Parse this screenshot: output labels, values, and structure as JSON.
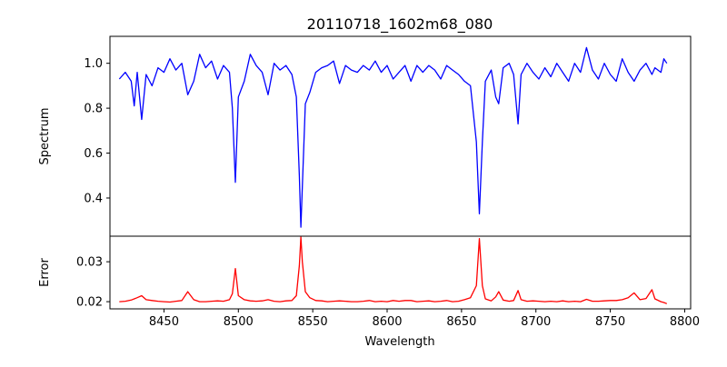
{
  "chart_data": [
    {
      "type": "line",
      "title": "20110718_1602m68_080",
      "xlabel": "",
      "ylabel": "Spectrum",
      "xlim": [
        8413.7,
        8804
      ],
      "ylim": [
        0.23,
        1.12
      ],
      "yticks": [
        "0.4",
        "0.6",
        "0.8",
        "1.0"
      ],
      "ytick_values": [
        0.4,
        0.6,
        0.8,
        1.0
      ],
      "color": "#0000ff",
      "series": [
        {
          "name": "Spectrum",
          "x": [
            8420,
            8424,
            8428,
            8430,
            8432,
            8435,
            8438,
            8442,
            8446,
            8450,
            8454,
            8458,
            8462,
            8466,
            8470,
            8474,
            8478,
            8482,
            8486,
            8490,
            8494,
            8496,
            8498,
            8500,
            8504,
            8508,
            8512,
            8516,
            8520,
            8524,
            8528,
            8532,
            8536,
            8539,
            8541,
            8542,
            8543,
            8545,
            8548,
            8552,
            8556,
            8560,
            8564,
            8568,
            8572,
            8576,
            8580,
            8584,
            8588,
            8592,
            8596,
            8600,
            8604,
            8608,
            8612,
            8616,
            8620,
            8624,
            8628,
            8632,
            8636,
            8640,
            8644,
            8648,
            8652,
            8656,
            8660,
            8662,
            8664,
            8666,
            8670,
            8673,
            8675,
            8678,
            8682,
            8685,
            8688,
            8690,
            8694,
            8698,
            8702,
            8706,
            8710,
            8714,
            8718,
            8722,
            8726,
            8730,
            8734,
            8738,
            8742,
            8746,
            8750,
            8754,
            8758,
            8762,
            8766,
            8770,
            8774,
            8778,
            8780,
            8784,
            8786,
            8788
          ],
          "y": [
            0.93,
            0.96,
            0.92,
            0.81,
            0.96,
            0.75,
            0.95,
            0.9,
            0.98,
            0.96,
            1.02,
            0.97,
            1.0,
            0.86,
            0.92,
            1.04,
            0.98,
            1.01,
            0.93,
            0.99,
            0.96,
            0.8,
            0.47,
            0.85,
            0.92,
            1.04,
            0.99,
            0.96,
            0.86,
            1.0,
            0.97,
            0.99,
            0.95,
            0.85,
            0.5,
            0.27,
            0.45,
            0.82,
            0.87,
            0.96,
            0.98,
            0.99,
            1.01,
            0.91,
            0.99,
            0.97,
            0.96,
            0.99,
            0.97,
            1.01,
            0.96,
            0.99,
            0.93,
            0.96,
            0.99,
            0.92,
            0.99,
            0.96,
            0.99,
            0.97,
            0.93,
            0.99,
            0.97,
            0.95,
            0.92,
            0.9,
            0.65,
            0.33,
            0.65,
            0.92,
            0.97,
            0.85,
            0.82,
            0.98,
            1.0,
            0.95,
            0.73,
            0.95,
            1.0,
            0.96,
            0.93,
            0.98,
            0.94,
            1.0,
            0.96,
            0.92,
            1.0,
            0.96,
            1.07,
            0.97,
            0.93,
            1.0,
            0.95,
            0.92,
            1.02,
            0.96,
            0.92,
            0.97,
            1.0,
            0.95,
            0.98,
            0.96,
            1.02,
            1.0
          ]
        }
      ]
    },
    {
      "type": "line",
      "title": "",
      "xlabel": "Wavelength",
      "ylabel": "Error",
      "xlim": [
        8413.7,
        8804
      ],
      "ylim": [
        0.0182,
        0.0364
      ],
      "xticks": [
        "8450",
        "8500",
        "8550",
        "8600",
        "8650",
        "8700",
        "8750",
        "8800"
      ],
      "xtick_values": [
        8450,
        8500,
        8550,
        8600,
        8650,
        8700,
        8750,
        8800
      ],
      "yticks": [
        "0.02",
        "0.03"
      ],
      "ytick_values": [
        0.02,
        0.03
      ],
      "color": "#ff0000",
      "series": [
        {
          "name": "Error",
          "x": [
            8420,
            8424,
            8428,
            8430,
            8432,
            8435,
            8438,
            8442,
            8446,
            8450,
            8454,
            8458,
            8462,
            8466,
            8470,
            8474,
            8478,
            8482,
            8486,
            8490,
            8494,
            8496,
            8498,
            8500,
            8504,
            8508,
            8512,
            8516,
            8520,
            8524,
            8528,
            8532,
            8536,
            8539,
            8541,
            8542,
            8543,
            8545,
            8548,
            8552,
            8556,
            8560,
            8564,
            8568,
            8572,
            8576,
            8580,
            8584,
            8588,
            8592,
            8596,
            8600,
            8604,
            8608,
            8612,
            8616,
            8620,
            8624,
            8628,
            8632,
            8636,
            8640,
            8644,
            8648,
            8652,
            8656,
            8660,
            8662,
            8664,
            8666,
            8670,
            8673,
            8675,
            8678,
            8682,
            8685,
            8688,
            8690,
            8694,
            8698,
            8702,
            8706,
            8710,
            8714,
            8718,
            8722,
            8726,
            8730,
            8734,
            8738,
            8742,
            8746,
            8750,
            8754,
            8758,
            8762,
            8766,
            8770,
            8774,
            8778,
            8780,
            8784,
            8786,
            8788
          ],
          "y": [
            0.02,
            0.0201,
            0.0204,
            0.0207,
            0.021,
            0.0215,
            0.0205,
            0.0203,
            0.0201,
            0.02,
            0.0199,
            0.0201,
            0.0203,
            0.0225,
            0.0205,
            0.02,
            0.02,
            0.0201,
            0.0202,
            0.0201,
            0.0205,
            0.022,
            0.0283,
            0.0215,
            0.0205,
            0.0202,
            0.0201,
            0.0202,
            0.0205,
            0.0201,
            0.02,
            0.0202,
            0.0203,
            0.0215,
            0.029,
            0.0362,
            0.03,
            0.0225,
            0.021,
            0.0203,
            0.0202,
            0.02,
            0.0201,
            0.0202,
            0.0201,
            0.02,
            0.02,
            0.0201,
            0.0203,
            0.02,
            0.0201,
            0.02,
            0.0203,
            0.0201,
            0.0203,
            0.0203,
            0.02,
            0.0201,
            0.0202,
            0.02,
            0.0201,
            0.0203,
            0.02,
            0.0201,
            0.0205,
            0.021,
            0.024,
            0.0358,
            0.024,
            0.0207,
            0.0202,
            0.0212,
            0.0225,
            0.0204,
            0.0201,
            0.0203,
            0.0228,
            0.0205,
            0.0201,
            0.0202,
            0.0201,
            0.02,
            0.0201,
            0.02,
            0.0202,
            0.02,
            0.0201,
            0.02,
            0.0206,
            0.0201,
            0.0201,
            0.0202,
            0.0203,
            0.0203,
            0.0205,
            0.021,
            0.0222,
            0.0205,
            0.0208,
            0.023,
            0.0207,
            0.02,
            0.0198,
            0.0195
          ]
        }
      ]
    }
  ]
}
